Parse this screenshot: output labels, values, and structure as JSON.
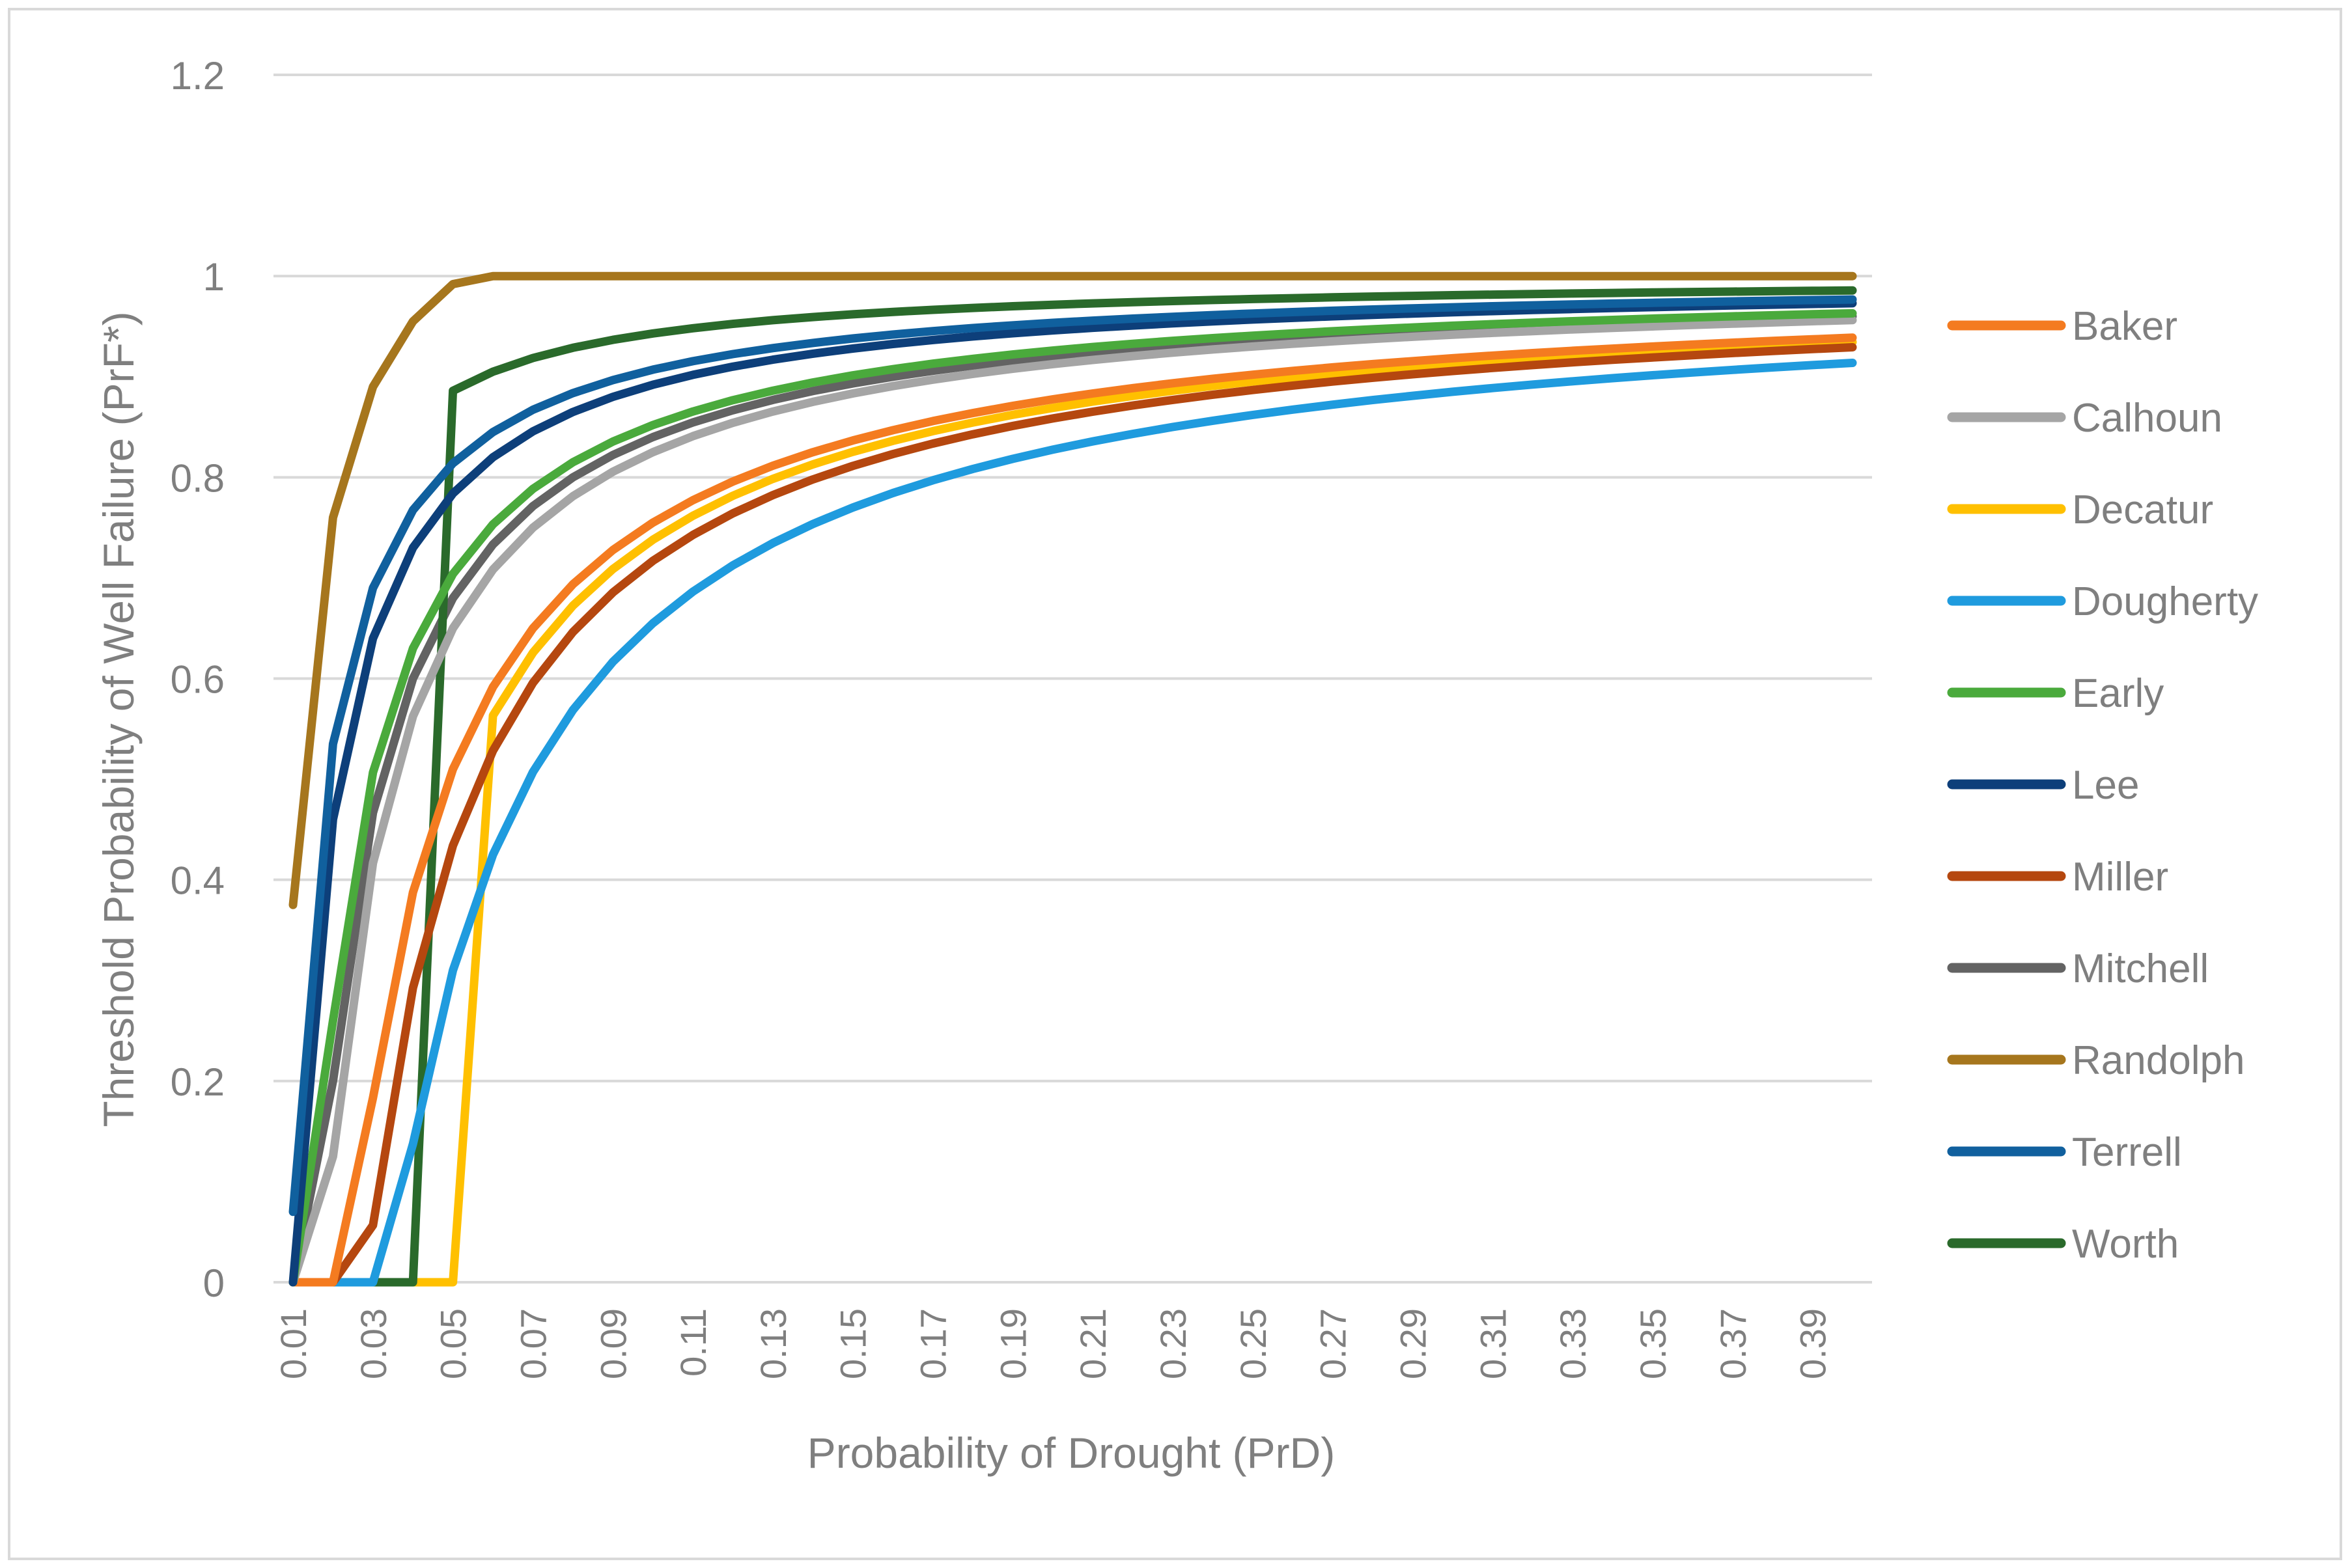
{
  "chart_data": {
    "type": "line",
    "title": "",
    "xlabel": "Probability of Drought (PrD)",
    "ylabel": "Threshold Probability of Well Failure (PrF*)",
    "xlim": [
      0.01,
      0.4
    ],
    "ylim": [
      0,
      1.2
    ],
    "x_step": 0.01,
    "x_tick_labels": [
      "0.01",
      "0.03",
      "0.05",
      "0.07",
      "0.09",
      "0.11",
      "0.13",
      "0.15",
      "0.17",
      "0.19",
      "0.21",
      "0.23",
      "0.25",
      "0.27",
      "0.29",
      "0.31",
      "0.33",
      "0.35",
      "0.37",
      "0.39"
    ],
    "y_tick_labels": [
      "0",
      "0.2",
      "0.4",
      "0.6",
      "0.8",
      "1",
      "1.2"
    ],
    "grid": true,
    "legend_position": "right",
    "model": "PrF* = min(1, max(0, 1 - A / PrD)) for most series",
    "series": [
      {
        "name": "Baker",
        "color": "#F47B20",
        "A": 0.0245,
        "zero_through": 0.02
      },
      {
        "name": "Calhoun",
        "color": "#A5A5A5",
        "A": 0.0175
      },
      {
        "name": "Decatur",
        "color": "#FFC000",
        "A": 0.0262,
        "zero_through": 0.05
      },
      {
        "name": "Dougherty",
        "color": "#1F9BDE",
        "A": 0.0345
      },
      {
        "name": "Early",
        "color": "#4AAA3C",
        "A": 0.0148
      },
      {
        "name": "Lee",
        "color": "#0D3F7A",
        "A": 0.0108
      },
      {
        "name": "Miller",
        "color": "#B5470F",
        "A": 0.0283
      },
      {
        "name": "Mitchell",
        "color": "#636363",
        "A": 0.016
      },
      {
        "name": "Randolph",
        "color": "#A6761D",
        "values": [
          0.375,
          0.76,
          0.89,
          0.955,
          0.992,
          1.0
        ]
      },
      {
        "name": "Terrell",
        "color": "#10609E",
        "A": 0.0093
      },
      {
        "name": "Worth",
        "color": "#2A6A2B",
        "A": 0.0057,
        "zero_through": 0.04
      }
    ]
  }
}
